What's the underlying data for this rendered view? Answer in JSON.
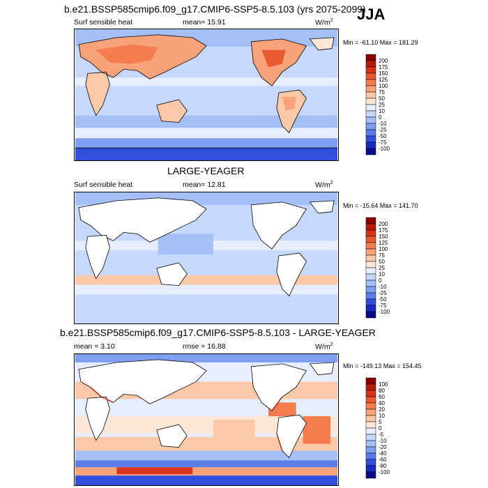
{
  "season": "JJA",
  "panels": [
    {
      "id": "top",
      "title": "b.e21.BSSP585cmip6.f09_g17.CMIP6-SSP5-8.5.103 (yrs 2075-2099)",
      "left_label": "Surf sensible heat",
      "center_label": "mean=  15.91",
      "units": "W/m",
      "units_sup": "2",
      "minmax": "Min = -61.10 Max = 181.29",
      "levels": [
        "200",
        "175",
        "150",
        "125",
        "100",
        "75",
        "50",
        "25",
        "10",
        "0",
        "-10",
        "-25",
        "-50",
        "-75",
        "-100"
      ],
      "colors": [
        "#8a0000",
        "#b51a0c",
        "#d8341d",
        "#ea5a30",
        "#f37d4e",
        "#f8a37a",
        "#fbc8a8",
        "#fde8d8",
        "#e6eeff",
        "#c6d8fb",
        "#a4c0f6",
        "#7f9ff0",
        "#5a7de8",
        "#2f4fdc",
        "#1a2bc3",
        "#0a0a8a"
      ]
    },
    {
      "id": "middle",
      "title": "LARGE-YEAGER",
      "left_label": "Surf sensible heat",
      "center_label": "mean=  12.81",
      "units": "W/m",
      "units_sup": "2",
      "minmax": "Min = -15.64 Max = 141.70",
      "levels": [
        "200",
        "175",
        "150",
        "125",
        "100",
        "75",
        "50",
        "25",
        "10",
        "0",
        "-10",
        "-25",
        "-50",
        "-75",
        "-100"
      ],
      "colors": [
        "#8a0000",
        "#b51a0c",
        "#d8341d",
        "#ea5a30",
        "#f37d4e",
        "#f8a37a",
        "#fbc8a8",
        "#fde8d8",
        "#e6eeff",
        "#c6d8fb",
        "#a4c0f6",
        "#7f9ff0",
        "#5a7de8",
        "#2f4fdc",
        "#1a2bc3",
        "#0a0a8a"
      ]
    },
    {
      "id": "bottom",
      "title": "b.e21.BSSP585cmip6.f09_g17.CMIP6-SSP5-8.5.103 - LARGE-YEAGER",
      "left_label": "mean =   3.10",
      "center_label": "rmse =  16.88",
      "units": "W/m",
      "units_sup": "2",
      "minmax": "Min = -149.13 Max = 154.45",
      "levels": [
        "100",
        "80",
        "60",
        "40",
        "20",
        "10",
        "5",
        "0",
        "-5",
        "-10",
        "-20",
        "-40",
        "-60",
        "-80",
        "-100"
      ],
      "colors": [
        "#8a0000",
        "#b51a0c",
        "#d8341d",
        "#ea5a30",
        "#f37d4e",
        "#f8a37a",
        "#fbc8a8",
        "#fde8d8",
        "#e6eeff",
        "#c6d8fb",
        "#a4c0f6",
        "#7f9ff0",
        "#5a7de8",
        "#2f4fdc",
        "#1a2bc3",
        "#0a0a8a"
      ]
    }
  ]
}
